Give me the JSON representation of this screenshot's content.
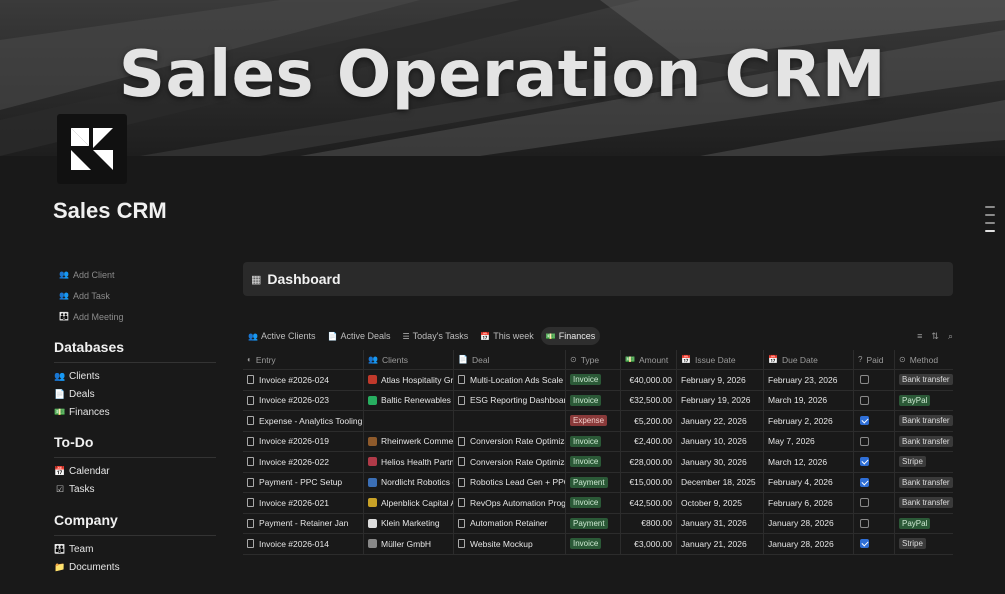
{
  "banner": {
    "title": "Sales Operation CRM"
  },
  "page": {
    "title": "Sales CRM"
  },
  "quick_actions": [
    {
      "label": "Add Client",
      "icon": "people-icon"
    },
    {
      "label": "Add Task",
      "icon": "people-icon"
    },
    {
      "label": "Add Meeting",
      "icon": "group-icon"
    }
  ],
  "sections": {
    "databases": {
      "title": "Databases",
      "items": [
        "Clients",
        "Deals",
        "Finances"
      ]
    },
    "todo": {
      "title": "To-Do",
      "items": [
        "Calendar",
        "Tasks"
      ]
    },
    "company": {
      "title": "Company",
      "items": [
        "Team",
        "Documents"
      ]
    }
  },
  "dashboard": {
    "title": "Dashboard"
  },
  "tabs": [
    "Active Clients",
    "Active Deals",
    "Today's Tasks",
    "This week",
    "Finances"
  ],
  "active_tab": "Finances",
  "columns": [
    "Entry",
    "Clients",
    "Deal",
    "Type",
    "Amount",
    "Issue Date",
    "Due Date",
    "Paid",
    "Method"
  ],
  "rows": [
    {
      "entry": "Invoice #2026-024",
      "client": "Atlas Hospitality Gr",
      "deal": "Multi-Location Ads Scale",
      "type": "Invoice",
      "amount": "€40,000.00",
      "issue": "February 9, 2026",
      "due": "February 23, 2026",
      "paid": false,
      "method": "Bank transfer"
    },
    {
      "entry": "Invoice #2026-023",
      "client": "Baltic Renewables (",
      "deal": "ESG Reporting Dashboard",
      "type": "Invoice",
      "amount": "€32,500.00",
      "issue": "February 19, 2026",
      "due": "March 19, 2026",
      "paid": false,
      "method": "PayPal"
    },
    {
      "entry": "Expense - Analytics Tooling",
      "client": "",
      "deal": "",
      "type": "Expense",
      "amount": "€5,200.00",
      "issue": "January 22, 2026",
      "due": "February 2, 2026",
      "paid": true,
      "method": "Bank transfer"
    },
    {
      "entry": "Invoice #2026-019",
      "client": "Rheinwerk Commer",
      "deal": "Conversion Rate Optimiza",
      "type": "Invoice",
      "amount": "€2,400.00",
      "issue": "January 10, 2026",
      "due": "May 7, 2026",
      "paid": false,
      "method": "Bank transfer"
    },
    {
      "entry": "Invoice #2026-022",
      "client": "Helios Health Partn",
      "deal": "Conversion Rate Optimiza",
      "type": "Invoice",
      "amount": "€28,000.00",
      "issue": "January 30, 2026",
      "due": "March 12, 2026",
      "paid": true,
      "method": "Stripe"
    },
    {
      "entry": "Payment - PPC Setup",
      "client": "Nordlicht Robotics (",
      "deal": "Robotics Lead Gen + PPC",
      "type": "Payment",
      "amount": "€15,000.00",
      "issue": "December 18, 2025",
      "due": "February 4, 2026",
      "paid": true,
      "method": "Bank transfer"
    },
    {
      "entry": "Invoice #2026-021",
      "client": "Alpenblick Capital A",
      "deal": "RevOps Automation Progr",
      "type": "Invoice",
      "amount": "€42,500.00",
      "issue": "October 9, 2025",
      "due": "February 6, 2026",
      "paid": false,
      "method": "Bank transfer"
    },
    {
      "entry": "Payment - Retainer Jan",
      "client": "Klein Marketing",
      "deal": "Automation Retainer",
      "type": "Payment",
      "amount": "€800.00",
      "issue": "January 31, 2026",
      "due": "January 28, 2026",
      "paid": false,
      "method": "PayPal"
    },
    {
      "entry": "Invoice #2026-014",
      "client": "Müller GmbH",
      "deal": "Website Mockup",
      "type": "Invoice",
      "amount": "€3,000.00",
      "issue": "January 21, 2026",
      "due": "January 28, 2026",
      "paid": true,
      "method": "Stripe"
    }
  ],
  "colors": {
    "background": "#191919",
    "invoice_badge": "#2b5937",
    "expense_badge": "#8a3a3a",
    "checkbox_on": "#2f6fd6"
  }
}
